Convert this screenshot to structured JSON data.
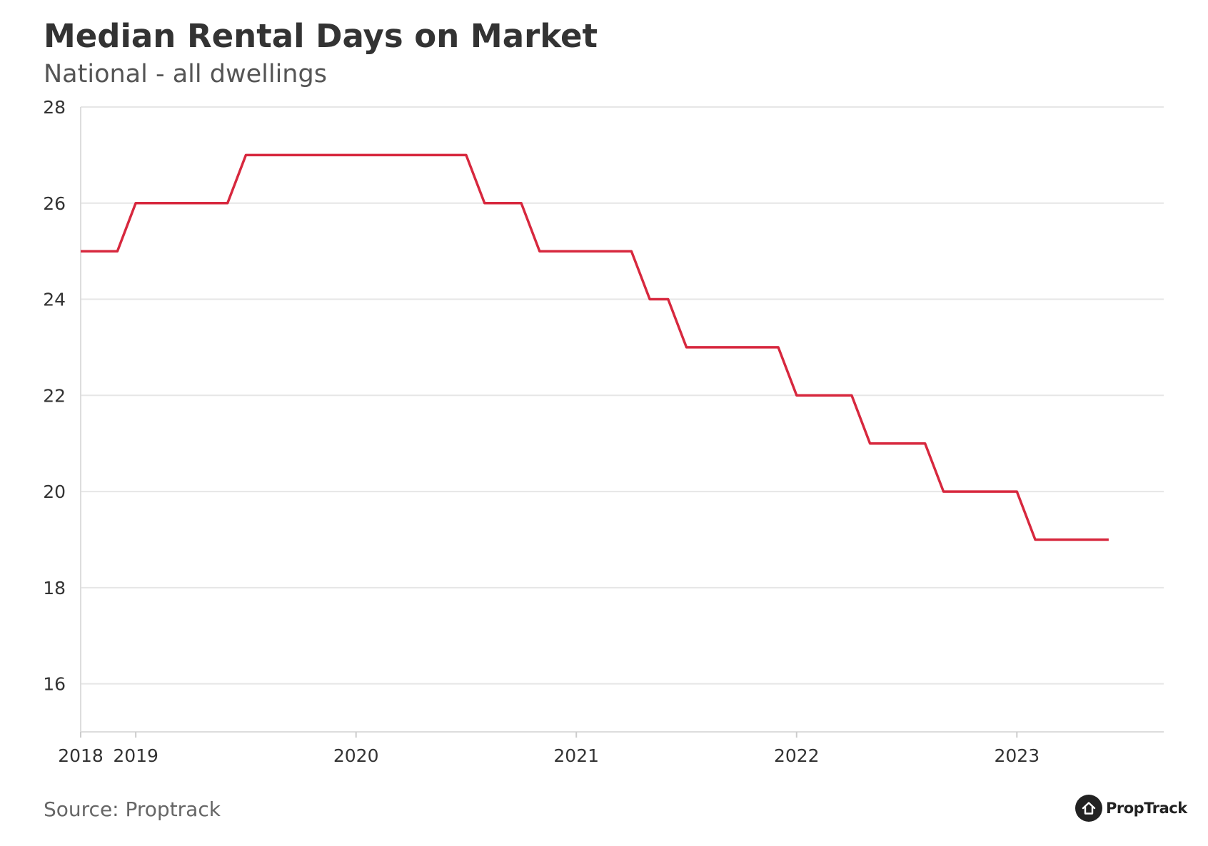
{
  "chart_data": {
    "type": "line",
    "title": "Median Rental Days on Market",
    "subtitle": "National - all dwellings",
    "xlabel": "",
    "ylabel": "",
    "ylim": [
      15,
      28
    ],
    "yticks": [
      16,
      18,
      20,
      22,
      24,
      26,
      28
    ],
    "xlim": [
      "2018-10",
      "2023-09"
    ],
    "xticks": [
      {
        "label": "2018",
        "date": "2018-10"
      },
      {
        "label": "2019",
        "date": "2019-01"
      },
      {
        "label": "2020",
        "date": "2020-01"
      },
      {
        "label": "2021",
        "date": "2021-01"
      },
      {
        "label": "2022",
        "date": "2022-01"
      },
      {
        "label": "2023",
        "date": "2023-01"
      }
    ],
    "grid": true,
    "legend": "none",
    "series": [
      {
        "color": "#d7283e",
        "points": [
          [
            "2018-10",
            25
          ],
          [
            "2018-12",
            25
          ],
          [
            "2019-01",
            26
          ],
          [
            "2019-06",
            26
          ],
          [
            "2019-07",
            27
          ],
          [
            "2020-07",
            27
          ],
          [
            "2020-08",
            26
          ],
          [
            "2020-10",
            26
          ],
          [
            "2020-11",
            25
          ],
          [
            "2021-04",
            25
          ],
          [
            "2021-05",
            24
          ],
          [
            "2021-06",
            24
          ],
          [
            "2021-07",
            23
          ],
          [
            "2021-12",
            23
          ],
          [
            "2022-01",
            22
          ],
          [
            "2022-04",
            22
          ],
          [
            "2022-05",
            21
          ],
          [
            "2022-08",
            21
          ],
          [
            "2022-09",
            20
          ],
          [
            "2023-01",
            20
          ],
          [
            "2023-02",
            19
          ],
          [
            "2023-06",
            19
          ]
        ]
      }
    ]
  },
  "footer": {
    "source": "Source: Proptrack",
    "logo_text": "PropTrack",
    "logo_icon": "house-icon"
  }
}
